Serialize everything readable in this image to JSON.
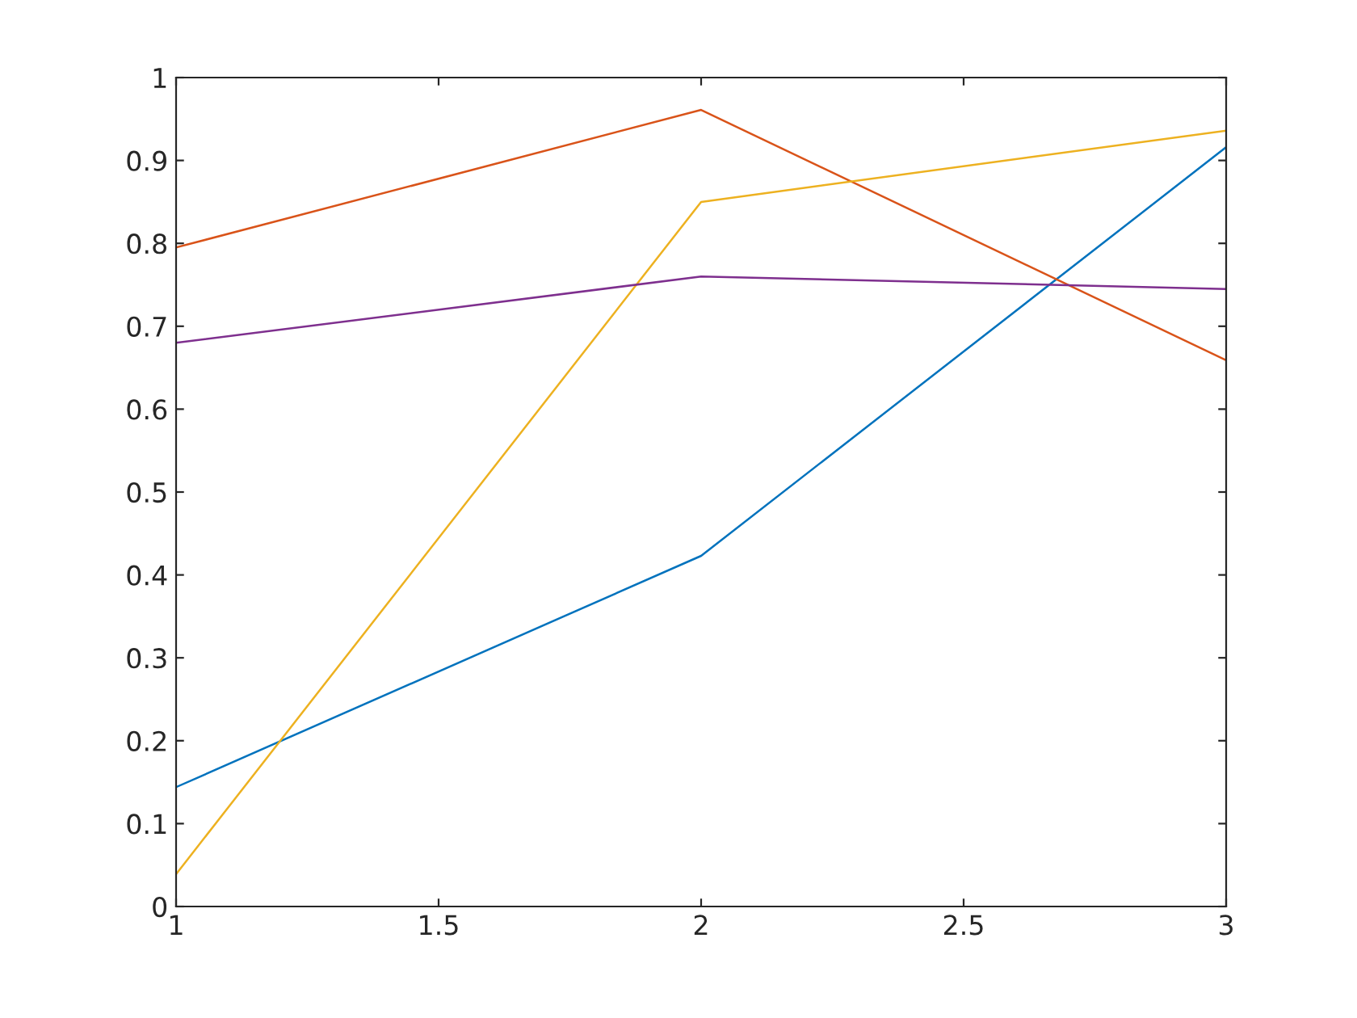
{
  "chart_data": {
    "type": "line",
    "x": [
      1,
      2,
      3
    ],
    "series": [
      {
        "color": "#0072bd",
        "values": [
          0.144,
          0.423,
          0.916
        ]
      },
      {
        "color": "#d95319",
        "values": [
          0.795,
          0.961,
          0.659
        ]
      },
      {
        "color": "#edb120",
        "values": [
          0.039,
          0.85,
          0.936
        ]
      },
      {
        "color": "#7e2f8e",
        "values": [
          0.68,
          0.76,
          0.745
        ]
      }
    ],
    "xlim": [
      1,
      3
    ],
    "xticks": [
      1,
      1.5,
      2,
      2.5,
      3
    ],
    "ylim": [
      0,
      1
    ],
    "yticks": [
      0,
      0.1,
      0.2,
      0.3,
      0.4,
      0.5,
      0.6,
      0.7,
      0.8,
      0.9,
      1
    ],
    "grid": false,
    "legend": false
  }
}
